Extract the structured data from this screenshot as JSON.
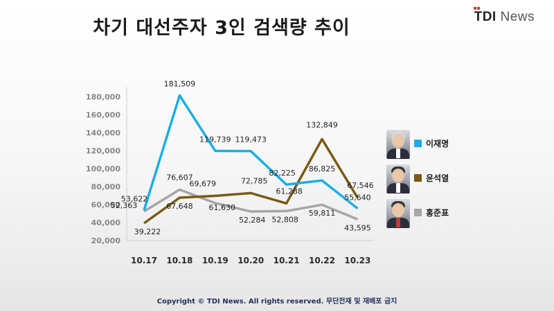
{
  "title": "차기 대선주자 3인 검색량 추이",
  "logo": {
    "tdi": "TDI",
    "news": "News"
  },
  "copyright": "Copyright © TDI News. All rights reserved. 무단전재 및 재배포 금지",
  "chart_data": {
    "type": "line",
    "title": "차기 대선주자 3인 검색량 추이",
    "categories": [
      "10.17",
      "10.18",
      "10.19",
      "10.20",
      "10.21",
      "10.22",
      "10.23"
    ],
    "y_ticks": [
      "20,000",
      "40,000",
      "60,000",
      "80,000",
      "100,000",
      "120,000",
      "140,000",
      "160,000",
      "180,000"
    ],
    "ylim": [
      20000,
      180000
    ],
    "grid": false,
    "legend_position": "right",
    "series": [
      {
        "name": "이재명",
        "color": "#1aaee5",
        "values": [
          53622,
          181509,
          119739,
          119473,
          82225,
          86825,
          55640
        ],
        "labels": [
          "53,622",
          "181,509",
          "119,739",
          "119,473",
          "82,225",
          "86,825",
          "55,640"
        ]
      },
      {
        "name": "윤석열",
        "color": "#7a5a12",
        "values": [
          39222,
          67648,
          69679,
          72785,
          61288,
          132849,
          67546
        ],
        "labels": [
          "39,222",
          "67,648",
          "69,679",
          "72,785",
          "61,288",
          "132,849",
          "67,546"
        ]
      },
      {
        "name": "홍준표",
        "color": "#a6a6a6",
        "values": [
          52363,
          76607,
          61630,
          52284,
          52808,
          59811,
          43595
        ],
        "labels": [
          "52,363",
          "76,607",
          "61,630",
          "52,284",
          "52,808",
          "59,811",
          "43,595"
        ]
      }
    ]
  }
}
